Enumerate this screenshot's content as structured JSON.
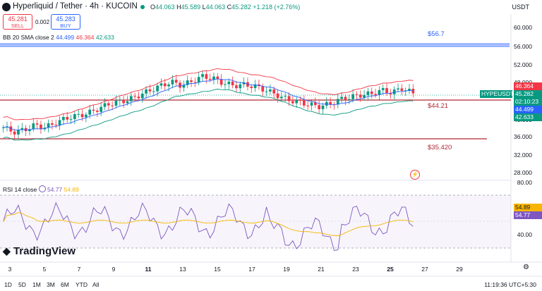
{
  "header": {
    "title": "Hyperliquid / Tether · 4h · KUCOIN",
    "ohlc": {
      "o_label": "O",
      "o": "44.063",
      "h_label": "H",
      "h": "45.589",
      "l_label": "L",
      "l": "44.063",
      "c_label": "C",
      "c": "45.282",
      "change": "+1.218 (+2.76%)"
    },
    "currency": "USDT"
  },
  "trade": {
    "sell_price": "45.281",
    "sell_label": "SELL",
    "spread": "0.002",
    "buy_price": "45.283",
    "buy_label": "BUY"
  },
  "bb_legend": {
    "name": "BB 20 SMA close 2",
    "basis": "44.499",
    "upper": "46.364",
    "lower": "42.633"
  },
  "rsi_legend": {
    "name": "RSI 14 close",
    "rsi": "54.77",
    "ma": "54.89"
  },
  "price_axis": [
    "60.000",
    "56.000",
    "52.000",
    "48.000",
    "44.000",
    "40.000",
    "36.000",
    "32.000",
    "28.000"
  ],
  "rsi_axis": [
    "80.00",
    "40.00"
  ],
  "price_tags": {
    "upper": "46.364",
    "symbol": "HYPEUSDT",
    "last": "45.282",
    "countdown": "02:10:23",
    "basis": "44.499",
    "lower": "42.633",
    "rsi_ma": "54.89",
    "rsi": "54.77"
  },
  "levels": {
    "top": "$56.7",
    "mid": "$44.21",
    "bottom": "$35.420"
  },
  "x_axis": [
    {
      "label": "3",
      "bold": false
    },
    {
      "label": "5",
      "bold": false
    },
    {
      "label": "7",
      "bold": false
    },
    {
      "label": "9",
      "bold": false
    },
    {
      "label": "11",
      "bold": true
    },
    {
      "label": "13",
      "bold": false
    },
    {
      "label": "15",
      "bold": false
    },
    {
      "label": "17",
      "bold": false
    },
    {
      "label": "19",
      "bold": false
    },
    {
      "label": "21",
      "bold": false
    },
    {
      "label": "23",
      "bold": false
    },
    {
      "label": "25",
      "bold": true
    },
    {
      "label": "27",
      "bold": false
    },
    {
      "label": "29",
      "bold": false
    }
  ],
  "timeframes": [
    "1D",
    "5D",
    "1M",
    "3M",
    "6M",
    "YTD",
    "All"
  ],
  "clock": "11:19:36 UTC+5:30",
  "watermark": "TradingView",
  "colors": {
    "up": "#089981",
    "down": "#f23645",
    "bb_upper": "#f23645",
    "bb_basis": "#2962ff",
    "bb_lower": "#089981",
    "rsi": "#7e57c2",
    "rsi_ma": "#f7b500"
  }
}
